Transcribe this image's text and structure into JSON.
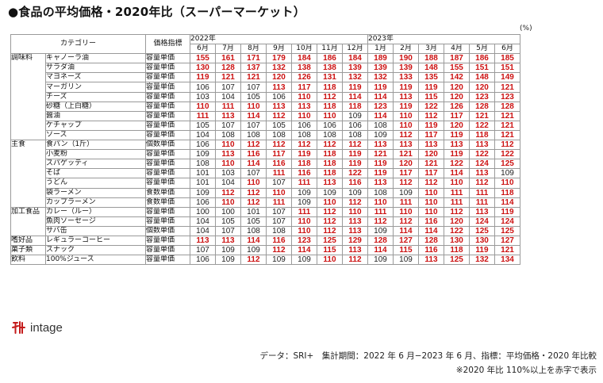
{
  "title": "●食品の平均価格・2020年比（スーパーマーケット）",
  "unit": "(%)",
  "headers": {
    "category": "カテゴリー",
    "indicator": "価格指標",
    "year1": "2022年",
    "year2": "2023年"
  },
  "months": [
    "6月",
    "7月",
    "8月",
    "9月",
    "10月",
    "11月",
    "12月",
    "1月",
    "2月",
    "3月",
    "4月",
    "5月",
    "6月"
  ],
  "colors": {
    "highlight": "#cc1111",
    "normal": "#222222"
  },
  "threshold": 110,
  "rows": [
    {
      "cat": "調味料",
      "span": 9,
      "item": "キャノーラ油",
      "ind": "容量単価",
      "vals": [
        155,
        161,
        171,
        179,
        184,
        186,
        184,
        189,
        190,
        188,
        187,
        186,
        185
      ]
    },
    {
      "item": "サラダ油",
      "ind": "容量単価",
      "vals": [
        130,
        128,
        137,
        132,
        138,
        138,
        139,
        139,
        139,
        148,
        155,
        151,
        151
      ]
    },
    {
      "item": "マヨネーズ",
      "ind": "容量単価",
      "vals": [
        119,
        121,
        121,
        120,
        126,
        131,
        132,
        132,
        133,
        135,
        142,
        148,
        149
      ]
    },
    {
      "item": "マーガリン",
      "ind": "容量単価",
      "vals": [
        106,
        107,
        107,
        113,
        117,
        118,
        119,
        119,
        119,
        119,
        120,
        120,
        121
      ]
    },
    {
      "item": "チーズ",
      "ind": "容量単価",
      "vals": [
        103,
        104,
        105,
        106,
        110,
        112,
        114,
        114,
        113,
        115,
        120,
        123,
        123
      ]
    },
    {
      "item": "砂糖（上白糖）",
      "ind": "容量単価",
      "vals": [
        110,
        111,
        110,
        113,
        113,
        118,
        118,
        123,
        119,
        122,
        126,
        128,
        128
      ]
    },
    {
      "item": "醤油",
      "ind": "容量単価",
      "vals": [
        111,
        113,
        114,
        112,
        110,
        110,
        109,
        114,
        110,
        112,
        117,
        121,
        121
      ]
    },
    {
      "item": "ケチャップ",
      "ind": "容量単価",
      "vals": [
        105,
        107,
        107,
        105,
        106,
        106,
        106,
        108,
        110,
        119,
        120,
        122,
        121
      ]
    },
    {
      "item": "ソース",
      "ind": "容量単価",
      "vals": [
        104,
        108,
        108,
        108,
        108,
        108,
        108,
        109,
        112,
        117,
        119,
        118,
        121
      ]
    },
    {
      "cat": "主食",
      "span": 7,
      "item": "食パン（1斤）",
      "ind": "個数単価",
      "vals": [
        106,
        110,
        112,
        112,
        112,
        112,
        112,
        113,
        113,
        113,
        113,
        113,
        112
      ]
    },
    {
      "item": "小麦粉",
      "ind": "容量単価",
      "vals": [
        109,
        113,
        116,
        117,
        119,
        118,
        119,
        121,
        121,
        120,
        119,
        122,
        122
      ]
    },
    {
      "item": "スパゲッティ",
      "ind": "容量単価",
      "vals": [
        108,
        110,
        114,
        116,
        118,
        118,
        119,
        119,
        120,
        121,
        122,
        124,
        125
      ]
    },
    {
      "item": "そば",
      "ind": "容量単価",
      "vals": [
        101,
        103,
        107,
        111,
        116,
        118,
        122,
        119,
        117,
        117,
        114,
        113,
        109
      ]
    },
    {
      "item": "うどん",
      "ind": "容量単価",
      "vals": [
        101,
        104,
        110,
        107,
        111,
        113,
        116,
        113,
        112,
        112,
        110,
        112,
        110
      ]
    },
    {
      "item": "袋ラーメン",
      "ind": "食数単価",
      "vals": [
        109,
        112,
        112,
        110,
        109,
        109,
        109,
        108,
        109,
        110,
        111,
        111,
        118
      ]
    },
    {
      "item": "カップラーメン",
      "ind": "食数単価",
      "vals": [
        106,
        110,
        112,
        111,
        109,
        110,
        112,
        110,
        111,
        110,
        111,
        111,
        114
      ]
    },
    {
      "cat": "加工食品",
      "span": 3,
      "item": "カレー（ルー）",
      "ind": "容量単価",
      "vals": [
        100,
        100,
        101,
        107,
        111,
        112,
        110,
        111,
        110,
        110,
        112,
        113,
        119
      ]
    },
    {
      "item": "魚肉ソーセージ",
      "ind": "容量単価",
      "vals": [
        104,
        105,
        105,
        107,
        110,
        112,
        113,
        112,
        112,
        116,
        120,
        124,
        124
      ]
    },
    {
      "item": "サバ缶",
      "ind": "個数単価",
      "vals": [
        104,
        107,
        108,
        108,
        110,
        112,
        113,
        109,
        114,
        114,
        122,
        125,
        125
      ]
    },
    {
      "cat": "嗜好品",
      "span": 1,
      "item": "レギュラーコーヒー",
      "ind": "容量単価",
      "vals": [
        113,
        113,
        114,
        116,
        123,
        125,
        129,
        128,
        127,
        128,
        130,
        130,
        127
      ]
    },
    {
      "cat": "菓子類",
      "span": 1,
      "item": "スナック",
      "ind": "容量単価",
      "vals": [
        107,
        109,
        109,
        112,
        114,
        115,
        113,
        114,
        115,
        116,
        118,
        119,
        121
      ]
    },
    {
      "cat": "飲料",
      "span": 1,
      "item": "100%ジュース",
      "ind": "容量単価",
      "vals": [
        106,
        109,
        112,
        109,
        109,
        110,
        112,
        109,
        109,
        113,
        125,
        132,
        134
      ]
    }
  ],
  "logo_text": "intage",
  "footer": {
    "line1": "データ：SRI+　集計期間：2022 年 6 月−2023 年 6 月、指標：平均価格・2020 年比較",
    "line2": "※2020 年比 110%以上を赤字で表示"
  }
}
